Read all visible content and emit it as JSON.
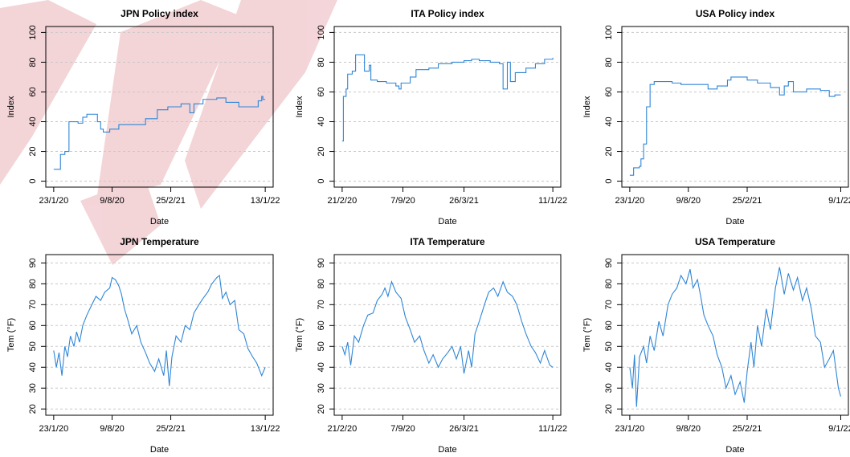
{
  "chart_data": [
    {
      "type": "line",
      "title": "JPN  Policy index",
      "xlabel": "Date",
      "ylabel": "Index",
      "step": true,
      "grid": true,
      "x": [
        "2020-01-23",
        "2020-02-10",
        "2020-02-15",
        "2020-03-01",
        "2020-03-15",
        "2020-04-15",
        "2020-05-01",
        "2020-05-15",
        "2020-06-10",
        "2020-06-20",
        "2020-07-01",
        "2020-07-10",
        "2020-08-01",
        "2020-09-01",
        "2020-10-15",
        "2020-11-01",
        "2020-12-01",
        "2021-01-10",
        "2021-02-15",
        "2021-04-01",
        "2021-05-01",
        "2021-05-15",
        "2021-06-15",
        "2021-08-01",
        "2021-09-01",
        "2021-10-15",
        "2021-12-01",
        "2021-12-20",
        "2022-01-01",
        "2022-01-05",
        "2022-01-13"
      ],
      "series": [
        {
          "color": "#2f86d6",
          "values": [
            8,
            8,
            18,
            20,
            40,
            39,
            43,
            45,
            45,
            40,
            35,
            33,
            35,
            38,
            38,
            38,
            42,
            48,
            50,
            52,
            46,
            52,
            55,
            56,
            53,
            50,
            50,
            54,
            57,
            55,
            55
          ]
        }
      ],
      "xlim": [
        "2019-12-27",
        "2022-02-09"
      ],
      "ylim": [
        -4,
        104
      ],
      "xticks": [
        {
          "value": "2020-01-23",
          "label": "23/1/20"
        },
        {
          "value": "2020-08-09",
          "label": "9/8/20"
        },
        {
          "value": "2021-02-25",
          "label": "25/2/21"
        },
        {
          "value": "2022-01-13",
          "label": "13/1/22"
        }
      ],
      "yticks": [
        0,
        20,
        40,
        60,
        80,
        100
      ]
    },
    {
      "type": "line",
      "title": "ITA  Policy index",
      "xlabel": "Date",
      "ylabel": "Index",
      "step": true,
      "grid": true,
      "x": [
        "2020-02-21",
        "2020-02-25",
        "2020-03-05",
        "2020-03-10",
        "2020-03-25",
        "2020-04-05",
        "2020-05-01",
        "2020-05-04",
        "2020-05-20",
        "2020-05-25",
        "2020-06-15",
        "2020-07-15",
        "2020-08-15",
        "2020-08-25",
        "2020-09-01",
        "2020-10-01",
        "2020-10-20",
        "2020-12-01",
        "2021-01-01",
        "2021-02-15",
        "2021-03-26",
        "2021-04-20",
        "2021-05-15",
        "2021-06-20",
        "2021-07-20",
        "2021-08-01",
        "2021-08-15",
        "2021-08-25",
        "2021-09-10",
        "2021-10-15",
        "2021-11-15",
        "2021-12-15",
        "2022-01-11"
      ],
      "series": [
        {
          "color": "#2f86d6",
          "values": [
            27,
            57,
            62,
            72,
            74,
            85,
            85,
            74,
            78,
            68,
            67,
            66,
            64,
            62,
            66,
            70,
            75,
            76,
            79,
            80,
            81,
            82,
            81,
            80,
            79,
            62,
            80,
            67,
            73,
            76,
            79,
            82,
            83
          ]
        }
      ],
      "xlim": [
        "2020-01-26",
        "2022-02-06"
      ],
      "ylim": [
        -4,
        104
      ],
      "xticks": [
        {
          "value": "2020-02-21",
          "label": "21/2/20"
        },
        {
          "value": "2020-09-07",
          "label": "7/9/20"
        },
        {
          "value": "2021-03-26",
          "label": "26/3/21"
        },
        {
          "value": "2022-01-11",
          "label": "11/1/22"
        }
      ],
      "yticks": [
        0,
        20,
        40,
        60,
        80,
        100
      ]
    },
    {
      "type": "line",
      "title": "USA  Policy index",
      "xlabel": "Date",
      "ylabel": "Index",
      "step": true,
      "grid": true,
      "x": [
        "2020-01-23",
        "2020-02-05",
        "2020-02-25",
        "2020-03-01",
        "2020-03-10",
        "2020-03-20",
        "2020-04-01",
        "2020-04-15",
        "2020-06-15",
        "2020-07-15",
        "2020-09-15",
        "2020-10-15",
        "2020-11-15",
        "2020-12-20",
        "2021-01-01",
        "2021-02-25",
        "2021-04-01",
        "2021-05-15",
        "2021-06-15",
        "2021-07-01",
        "2021-07-15",
        "2021-08-01",
        "2021-09-15",
        "2021-11-01",
        "2021-12-01",
        "2021-12-20",
        "2022-01-09"
      ],
      "series": [
        {
          "color": "#2f86d6",
          "values": [
            4,
            9,
            10,
            15,
            25,
            50,
            65,
            67,
            66,
            65,
            65,
            62,
            64,
            68,
            70,
            68,
            66,
            63,
            58,
            64,
            67,
            60,
            62,
            61,
            57,
            58,
            58
          ]
        }
      ],
      "xlim": [
        "2019-12-27",
        "2022-02-04"
      ],
      "ylim": [
        -4,
        104
      ],
      "xticks": [
        {
          "value": "2020-01-23",
          "label": "23/1/20"
        },
        {
          "value": "2020-08-09",
          "label": "9/8/20"
        },
        {
          "value": "2021-02-25",
          "label": "25/2/21"
        },
        {
          "value": "2022-01-09",
          "label": "9/1/22"
        }
      ],
      "yticks": [
        0,
        20,
        40,
        60,
        80,
        100
      ]
    },
    {
      "type": "line",
      "title": "JPN  Temperature",
      "xlabel": "Date",
      "ylabel": "Tem (°F)",
      "grid": true,
      "x": [
        "2020-01-23",
        "2020-02-01",
        "2020-02-10",
        "2020-02-20",
        "2020-03-01",
        "2020-03-10",
        "2020-03-20",
        "2020-04-01",
        "2020-04-10",
        "2020-04-20",
        "2020-05-01",
        "2020-05-15",
        "2020-06-01",
        "2020-06-15",
        "2020-07-01",
        "2020-07-15",
        "2020-08-01",
        "2020-08-09",
        "2020-08-20",
        "2020-09-01",
        "2020-09-10",
        "2020-09-20",
        "2020-10-01",
        "2020-10-15",
        "2020-11-01",
        "2020-11-15",
        "2020-12-01",
        "2020-12-15",
        "2021-01-01",
        "2021-01-15",
        "2021-02-01",
        "2021-02-10",
        "2021-02-20",
        "2021-03-01",
        "2021-03-15",
        "2021-04-01",
        "2021-04-15",
        "2021-05-01",
        "2021-05-15",
        "2021-06-01",
        "2021-06-15",
        "2021-07-01",
        "2021-07-15",
        "2021-08-01",
        "2021-08-10",
        "2021-08-20",
        "2021-09-01",
        "2021-09-15",
        "2021-10-01",
        "2021-10-15",
        "2021-11-01",
        "2021-11-15",
        "2021-12-01",
        "2021-12-15",
        "2022-01-01",
        "2022-01-13"
      ],
      "series": [
        {
          "color": "#2f86d6",
          "values": [
            48,
            40,
            47,
            36,
            50,
            45,
            55,
            50,
            57,
            52,
            60,
            65,
            70,
            74,
            72,
            76,
            78,
            83,
            82,
            79,
            75,
            68,
            63,
            56,
            60,
            52,
            47,
            42,
            38,
            44,
            36,
            48,
            31,
            45,
            55,
            52,
            60,
            58,
            66,
            70,
            73,
            76,
            80,
            83,
            84,
            73,
            76,
            70,
            72,
            58,
            56,
            49,
            45,
            42,
            36,
            40
          ]
        }
      ],
      "xlim": [
        "2019-12-27",
        "2022-02-09"
      ],
      "ylim": [
        17,
        94
      ],
      "xticks": [
        {
          "value": "2020-01-23",
          "label": "23/1/20"
        },
        {
          "value": "2020-08-09",
          "label": "9/8/20"
        },
        {
          "value": "2021-02-25",
          "label": "25/2/21"
        },
        {
          "value": "2022-01-13",
          "label": "13/1/22"
        }
      ],
      "yticks": [
        20,
        30,
        40,
        50,
        60,
        70,
        80,
        90
      ]
    },
    {
      "type": "line",
      "title": "ITA  Temperature",
      "xlabel": "Date",
      "ylabel": "Tem (°F)",
      "grid": true,
      "x": [
        "2020-02-21",
        "2020-03-01",
        "2020-03-10",
        "2020-03-20",
        "2020-04-01",
        "2020-04-15",
        "2020-05-01",
        "2020-05-15",
        "2020-06-01",
        "2020-06-15",
        "2020-07-01",
        "2020-07-10",
        "2020-07-20",
        "2020-08-01",
        "2020-08-15",
        "2020-09-01",
        "2020-09-15",
        "2020-10-01",
        "2020-10-15",
        "2020-11-01",
        "2020-11-15",
        "2020-12-01",
        "2020-12-15",
        "2021-01-01",
        "2021-01-15",
        "2021-02-01",
        "2021-02-15",
        "2021-03-01",
        "2021-03-15",
        "2021-03-26",
        "2021-04-10",
        "2021-04-20",
        "2021-05-01",
        "2021-05-15",
        "2021-06-01",
        "2021-06-15",
        "2021-07-01",
        "2021-07-15",
        "2021-08-01",
        "2021-08-15",
        "2021-09-01",
        "2021-09-15",
        "2021-10-01",
        "2021-10-15",
        "2021-11-01",
        "2021-11-15",
        "2021-12-01",
        "2021-12-15",
        "2022-01-01",
        "2022-01-11"
      ],
      "series": [
        {
          "color": "#2f86d6",
          "values": [
            50,
            46,
            52,
            41,
            55,
            52,
            60,
            65,
            66,
            72,
            75,
            78,
            74,
            81,
            76,
            73,
            64,
            58,
            52,
            55,
            48,
            42,
            46,
            40,
            44,
            47,
            50,
            44,
            50,
            37,
            48,
            40,
            56,
            62,
            70,
            76,
            78,
            74,
            81,
            76,
            74,
            70,
            62,
            56,
            50,
            47,
            42,
            48,
            41,
            40
          ]
        }
      ],
      "xlim": [
        "2020-01-26",
        "2022-02-06"
      ],
      "ylim": [
        17,
        94
      ],
      "xticks": [
        {
          "value": "2020-02-21",
          "label": "21/2/20"
        },
        {
          "value": "2020-09-07",
          "label": "7/9/20"
        },
        {
          "value": "2021-03-26",
          "label": "26/3/21"
        },
        {
          "value": "2022-01-11",
          "label": "11/1/22"
        }
      ],
      "yticks": [
        20,
        30,
        40,
        50,
        60,
        70,
        80,
        90
      ]
    },
    {
      "type": "line",
      "title": "USA  Temperature",
      "xlabel": "Date",
      "ylabel": "Tem (°F)",
      "grid": true,
      "x": [
        "2020-01-23",
        "2020-02-01",
        "2020-02-08",
        "2020-02-15",
        "2020-02-25",
        "2020-03-10",
        "2020-03-20",
        "2020-04-01",
        "2020-04-15",
        "2020-05-01",
        "2020-05-15",
        "2020-06-01",
        "2020-06-15",
        "2020-07-01",
        "2020-07-15",
        "2020-08-01",
        "2020-08-15",
        "2020-08-25",
        "2020-09-09",
        "2020-09-20",
        "2020-10-01",
        "2020-10-15",
        "2020-11-01",
        "2020-11-15",
        "2020-12-01",
        "2020-12-15",
        "2021-01-01",
        "2021-01-15",
        "2021-02-01",
        "2021-02-15",
        "2021-02-25",
        "2021-03-10",
        "2021-03-20",
        "2021-04-01",
        "2021-04-15",
        "2021-05-01",
        "2021-05-15",
        "2021-06-01",
        "2021-06-15",
        "2021-07-01",
        "2021-07-15",
        "2021-08-01",
        "2021-08-15",
        "2021-09-01",
        "2021-09-15",
        "2021-10-01",
        "2021-10-15",
        "2021-11-01",
        "2021-11-15",
        "2021-12-01",
        "2021-12-15",
        "2022-01-01",
        "2022-01-09"
      ],
      "series": [
        {
          "color": "#2f86d6",
          "values": [
            40,
            30,
            46,
            21,
            45,
            50,
            42,
            55,
            48,
            62,
            55,
            70,
            75,
            78,
            84,
            80,
            87,
            78,
            82,
            74,
            65,
            60,
            55,
            46,
            40,
            30,
            36,
            27,
            33,
            23,
            38,
            52,
            40,
            60,
            50,
            68,
            58,
            78,
            88,
            75,
            85,
            77,
            83,
            72,
            78,
            68,
            55,
            52,
            40,
            44,
            48,
            30,
            26
          ]
        }
      ],
      "xlim": [
        "2019-12-27",
        "2022-02-04"
      ],
      "ylim": [
        17,
        94
      ],
      "xticks": [
        {
          "value": "2020-01-23",
          "label": "23/1/20"
        },
        {
          "value": "2020-08-09",
          "label": "9/8/20"
        },
        {
          "value": "2021-02-25",
          "label": "25/2/21"
        },
        {
          "value": "2022-01-09",
          "label": "9/1/22"
        }
      ],
      "yticks": [
        20,
        30,
        40,
        50,
        60,
        70,
        80,
        90
      ]
    }
  ]
}
